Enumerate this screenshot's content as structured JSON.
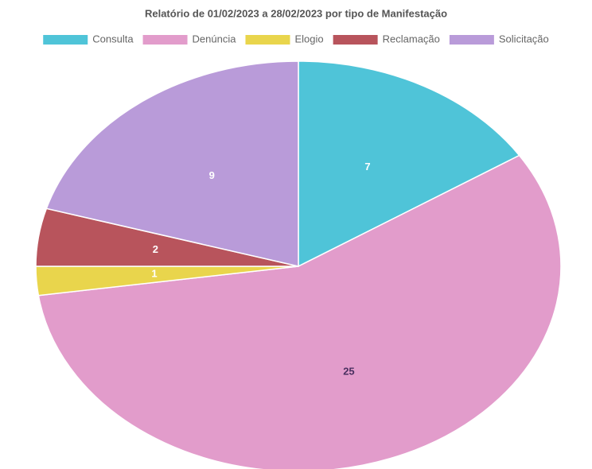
{
  "chart_data": {
    "type": "pie",
    "title": "Relatório de 01/02/2023  a 28/02/2023 por tipo de Manifestação",
    "categories": [
      "Consulta",
      "Denúncia",
      "Elogio",
      "Reclamação",
      "Solicitação"
    ],
    "values": [
      7,
      25,
      1,
      2,
      9
    ],
    "colors": [
      "#4fc4d8",
      "#e29ccb",
      "#e9d54c",
      "#b8545c",
      "#b99bd9"
    ],
    "legend": "top"
  }
}
